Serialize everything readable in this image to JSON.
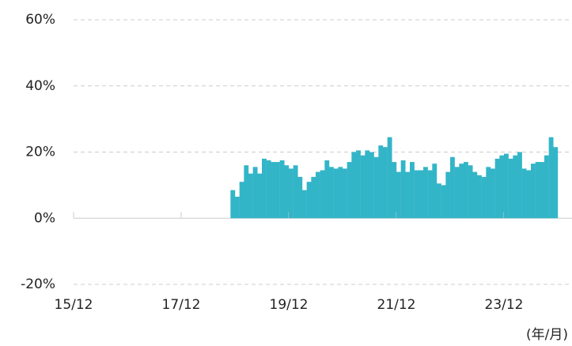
{
  "chart_data": {
    "type": "bar",
    "x_unit_label": "(年/月)",
    "categories": [
      "15/12",
      null,
      null,
      null,
      null,
      null,
      null,
      null,
      null,
      null,
      null,
      null,
      null,
      null,
      null,
      null,
      null,
      null,
      null,
      null,
      null,
      null,
      null,
      null,
      "17/12",
      null,
      null,
      null,
      null,
      null,
      null,
      null,
      null,
      null,
      null,
      null,
      null,
      null,
      null,
      null,
      null,
      null,
      null,
      null,
      null,
      null,
      null,
      null,
      "19/12",
      null,
      null,
      null,
      null,
      null,
      null,
      null,
      null,
      null,
      null,
      null,
      null,
      null,
      null,
      null,
      null,
      null,
      null,
      null,
      null,
      null,
      null,
      null,
      "21/12",
      null,
      null,
      null,
      null,
      null,
      null,
      null,
      null,
      null,
      null,
      null,
      null,
      null,
      null,
      null,
      null,
      null,
      null,
      null,
      null,
      null,
      null,
      null,
      "23/12",
      null,
      null,
      null,
      null,
      null,
      null,
      null,
      null,
      null,
      null,
      null
    ],
    "values": [
      null,
      null,
      null,
      null,
      null,
      null,
      null,
      null,
      null,
      null,
      null,
      null,
      null,
      null,
      null,
      null,
      null,
      null,
      null,
      null,
      null,
      null,
      null,
      null,
      null,
      null,
      null,
      null,
      null,
      null,
      null,
      null,
      null,
      null,
      null,
      8.5,
      6.5,
      11,
      16,
      13.5,
      15.5,
      13.5,
      18,
      17.5,
      17,
      17,
      17.5,
      16,
      15,
      16,
      12.5,
      8.5,
      11,
      12.5,
      14,
      14.5,
      17.5,
      15.5,
      15,
      15.5,
      15,
      17,
      20,
      20.5,
      19,
      20.5,
      20,
      18.5,
      22,
      21.5,
      24.5,
      17,
      14,
      17.5,
      14,
      17,
      14.5,
      14.5,
      15.5,
      14.5,
      16.5,
      10.5,
      10,
      14,
      18.5,
      15.5,
      16.5,
      17,
      16,
      14,
      13,
      12.5,
      15.5,
      15,
      18,
      19,
      19.5,
      18,
      19,
      20,
      15,
      14.5,
      16.5,
      17,
      17,
      19,
      24.5,
      21.5
    ],
    "color": "#33b5c8",
    "ylim": [
      -20,
      60
    ],
    "yticks": [
      {
        "value": -20,
        "label": "-20%"
      },
      {
        "value": 0,
        "label": "0%"
      },
      {
        "value": 20,
        "label": "20%"
      },
      {
        "value": 40,
        "label": "40%"
      },
      {
        "value": 60,
        "label": "60%"
      }
    ],
    "grid": true
  }
}
